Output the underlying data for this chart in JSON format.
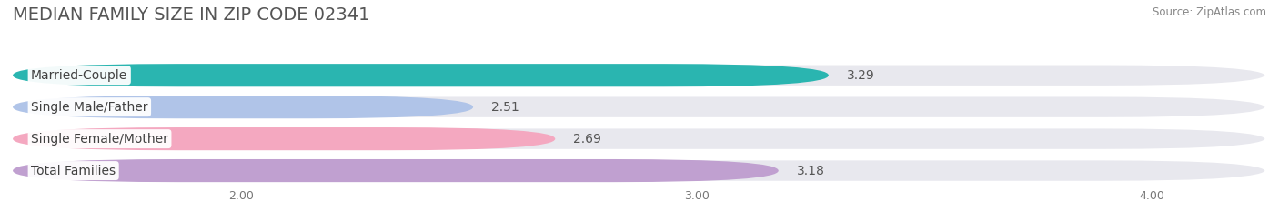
{
  "title": "MEDIAN FAMILY SIZE IN ZIP CODE 02341",
  "source": "Source: ZipAtlas.com",
  "categories": [
    "Married-Couple",
    "Single Male/Father",
    "Single Female/Mother",
    "Total Families"
  ],
  "values": [
    3.29,
    2.51,
    2.69,
    3.18
  ],
  "bar_colors": [
    "#2ab5b0",
    "#b0c4e8",
    "#f4a8c0",
    "#c0a0d0"
  ],
  "background_color": "#ffffff",
  "track_color": "#e8e8ee",
  "xlim_min": 1.5,
  "xlim_max": 4.25,
  "xticks": [
    2.0,
    3.0,
    4.0
  ],
  "xtick_labels": [
    "2.00",
    "3.00",
    "4.00"
  ],
  "title_fontsize": 14,
  "label_fontsize": 10,
  "value_fontsize": 10,
  "bar_height": 0.72,
  "bar_gap": 0.28
}
